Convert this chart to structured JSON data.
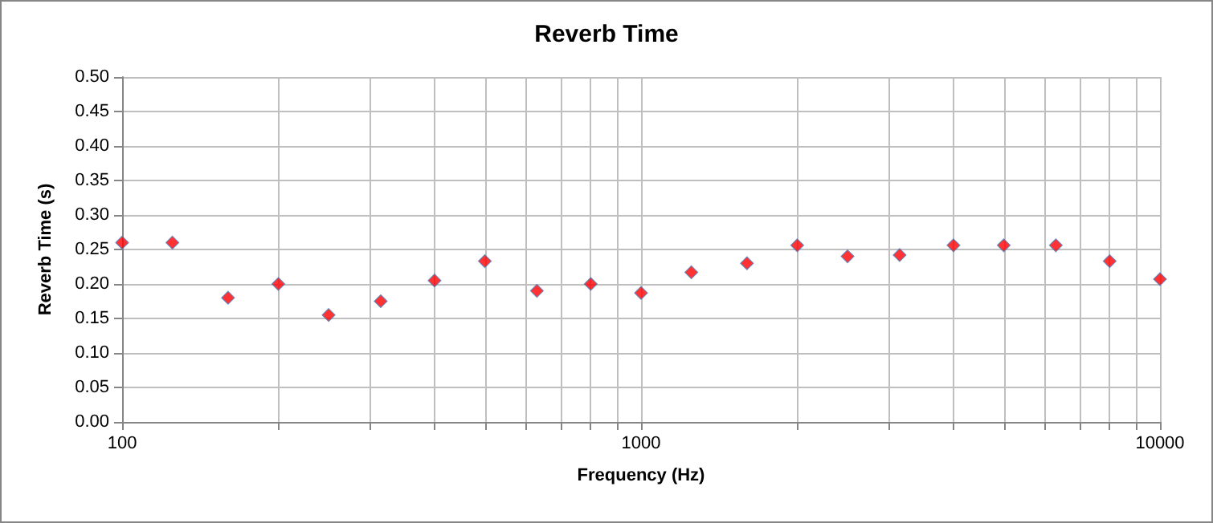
{
  "chart_data": {
    "type": "scatter",
    "title": "Reverb Time",
    "xlabel": "Frequency (Hz)",
    "ylabel": "Reverb Time (s)",
    "x": [
      100,
      125,
      160,
      200,
      250,
      315,
      400,
      500,
      630,
      800,
      1000,
      1250,
      1600,
      2000,
      2500,
      3150,
      4000,
      5000,
      6300,
      8000,
      10000
    ],
    "series": [
      {
        "color": "#ff0000",
        "values": [
          0.26,
          0.26,
          0.18,
          0.2,
          0.155,
          0.175,
          0.205,
          0.233,
          0.19,
          0.2,
          0.187,
          0.217,
          0.23,
          0.256,
          0.24,
          0.242,
          0.256,
          0.256,
          0.256,
          0.233,
          0.207
        ]
      }
    ],
    "log": "x",
    "xlim": [
      100,
      10000
    ],
    "xticks": [
      100,
      {
        "value": 200,
        "label": null
      },
      {
        "value": 300,
        "label": null
      },
      {
        "value": 400,
        "label": null
      },
      {
        "value": 500,
        "label": null
      },
      {
        "value": 600,
        "label": null
      },
      {
        "value": 700,
        "label": null
      },
      {
        "value": 800,
        "label": null
      },
      {
        "value": 900,
        "label": null
      },
      1000,
      {
        "value": 2000,
        "label": null
      },
      {
        "value": 3000,
        "label": null
      },
      {
        "value": 4000,
        "label": null
      },
      {
        "value": 5000,
        "label": null
      },
      {
        "value": 6000,
        "label": null
      },
      {
        "value": 7000,
        "label": null
      },
      {
        "value": 8000,
        "label": null
      },
      {
        "value": 9000,
        "label": null
      },
      10000
    ],
    "ylim": [
      0,
      0.5
    ],
    "yticks": [
      {
        "value": 0,
        "label": "0.00"
      },
      {
        "value": 0.05,
        "label": "0.05"
      },
      {
        "value": 0.1,
        "label": "0.10"
      },
      {
        "value": 0.15,
        "label": "0.15"
      },
      {
        "value": 0.2,
        "label": "0.20"
      },
      {
        "value": 0.25,
        "label": "0.25"
      },
      {
        "value": 0.3,
        "label": "0.30"
      },
      {
        "value": 0.35,
        "label": "0.35"
      },
      {
        "value": 0.4,
        "label": "0.40"
      },
      {
        "value": 0.45,
        "label": "0.45"
      },
      {
        "value": 0.5,
        "label": "0.50"
      }
    ],
    "grid": true,
    "marker": "diamond"
  }
}
